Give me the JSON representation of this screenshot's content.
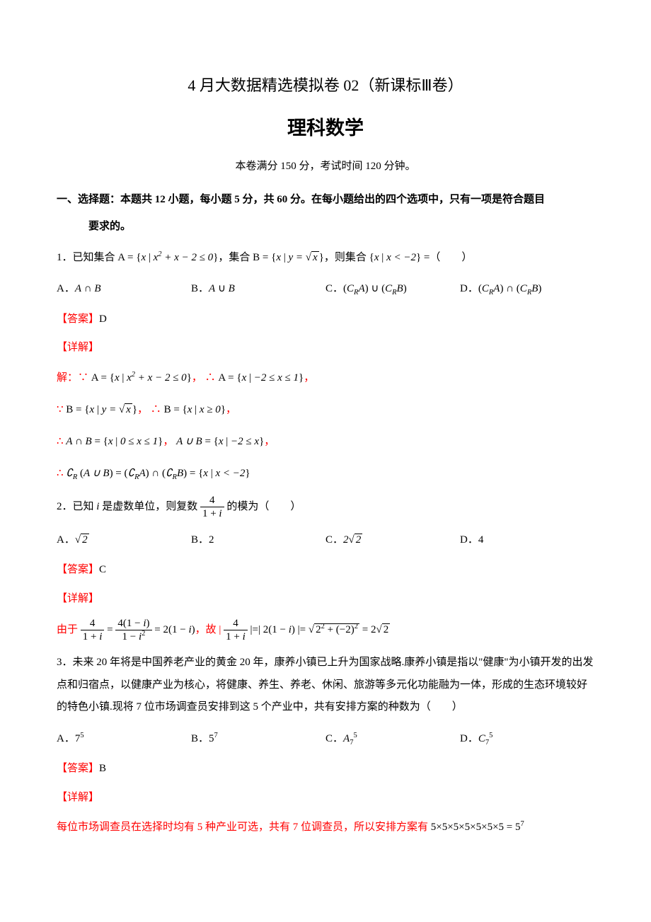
{
  "document": {
    "title_main": "4 月大数据精选模拟卷 02（新课标Ⅲ卷）",
    "title_sub": "理科数学",
    "exam_info": "本卷满分 150 分，考试时间 120 分钟。",
    "section_header": "一、选择题：本题共 12 小题，每小题 5 分，共 60 分。在每小题给出的四个选项中，只有一项是符合题目",
    "section_requirement": "要求的。",
    "q1": {
      "text_prefix": "1．已知集合 ",
      "set_a": "A = {x | x² + x − 2 ≤ 0}",
      "text_mid1": "，集合 ",
      "set_b_prefix": "B = ",
      "set_b_content": "{x | y = √x}",
      "text_mid2": "，则集合 {x | x < −2} =（　　）",
      "opt_a": "A．A ∩ B",
      "opt_b": "B．A ∪ B",
      "opt_c": "C．(CᴿA) ∪ (CᴿB)",
      "opt_d": "D．(CᴿA) ∩ (CᴿB)",
      "answer_label": "【答案】",
      "answer": "D",
      "detail_label": "【详解】",
      "sol_line1": "解：∵ A = {x | x² + x − 2 ≤ 0}， ∴ A = {x | −2 ≤ x ≤ 1}，",
      "sol_line2": "∵ B = {x | y = √x}， ∴ B = {x | x ≥ 0}，",
      "sol_line3": "∴ A ∩ B = {x | 0 ≤ x ≤ 1}，  A ∪ B = {x | −2 ≤ x}，",
      "sol_line4": "∴ ∁ᴿ (A ∪ B) = (∁ᴿA) ∩ (∁ᴿB) = {x | x < −2}"
    },
    "q2": {
      "text_prefix": "2．已知 i 是虚数单位，则复数 ",
      "frac_num": "4",
      "frac_den": "1 + i",
      "text_suffix": " 的模为（　　）",
      "opt_a": "A．√2",
      "opt_b": "B．2",
      "opt_c": "C．2√2",
      "opt_d": "D．4",
      "answer_label": "【答案】",
      "answer": "C",
      "detail_label": "【详解】",
      "sol_prefix": "由于 ",
      "sol_eq1_lhs_num": "4",
      "sol_eq1_lhs_den": "1 + i",
      "sol_eq1_mid_num": "4(1 − i)",
      "sol_eq1_mid_den": "1 − i²",
      "sol_eq1_rhs": " = 2(1 − i)",
      "sol_mid": "，故 | ",
      "sol_eq2_num": "4",
      "sol_eq2_den": "1 + i",
      "sol_eq2_rest": " | = | 2(1 − i) | = √(2² + (−2)²) = 2√2"
    },
    "q3": {
      "text": "3．未来 20 年将是中国养老产业的黄金 20 年，康养小镇已上升为国家战略.康养小镇是指以\"健康\"为小镇开发的出发点和归宿点，以健康产业为核心，将健康、养生、养老、休闲、旅游等多元化功能融为一体，形成的生态环境较好的特色小镇.现将 7 位市场调查员安排到这 5 个产业中，共有安排方案的种数为（　　）",
      "opt_a": "A．7⁵",
      "opt_b": "B．5⁷",
      "opt_c": "C．A₇⁵",
      "opt_d": "D．C₇⁵",
      "answer_label": "【答案】",
      "answer": "B",
      "detail_label": "【详解】",
      "sol": "每位市场调查员在选择时均有 5 种产业可选，共有 7 位调查员，所以安排方案有 5×5×5×5×5×5×5 = 5⁷"
    }
  },
  "styles": {
    "text_color": "#000000",
    "answer_color": "#ff0000",
    "background": "#ffffff",
    "body_font_size": 15,
    "title_main_size": 22,
    "title_sub_size": 27
  }
}
